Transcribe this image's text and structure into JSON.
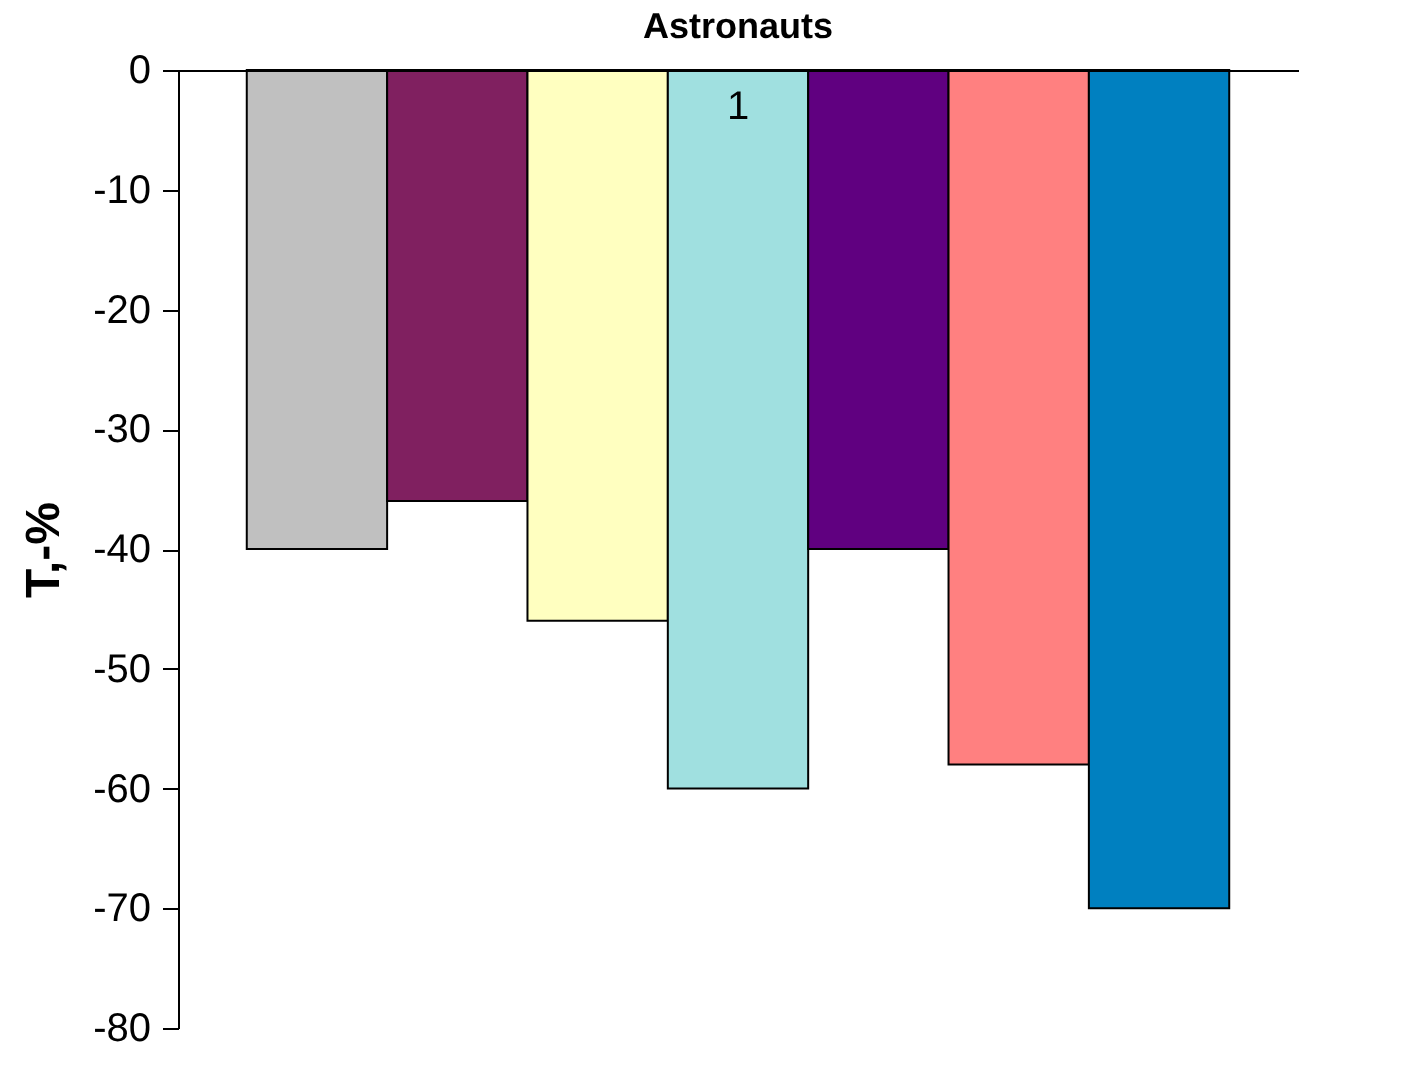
{
  "chart_data": {
    "type": "bar",
    "title": "Astronauts",
    "ylabel": "T,-%",
    "categories": [
      "1"
    ],
    "series": [
      {
        "color": "#c0c0c0",
        "values": [
          -40
        ]
      },
      {
        "color": "#802060",
        "values": [
          -36
        ]
      },
      {
        "color": "#ffffc0",
        "values": [
          -46
        ]
      },
      {
        "color": "#a0e0e0",
        "values": [
          -60
        ]
      },
      {
        "color": "#600080",
        "values": [
          -40
        ]
      },
      {
        "color": "#ff8080",
        "values": [
          -58
        ]
      },
      {
        "color": "#0080c0",
        "values": [
          -70
        ]
      }
    ],
    "ylim": [
      -80,
      0
    ],
    "yticks": [
      -80,
      -70,
      -60,
      -50,
      -40,
      -30,
      -20,
      -10,
      0
    ],
    "grid": false
  }
}
